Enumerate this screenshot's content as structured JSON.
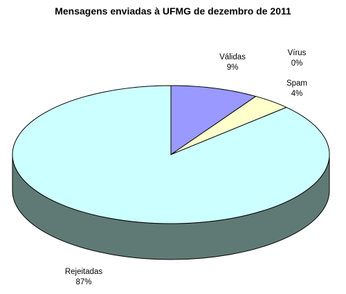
{
  "chart_data": {
    "type": "pie",
    "title": "Mensagens enviadas à UFMG de dezembro de 2011",
    "three_d": true,
    "slices": [
      {
        "label": "Válidas",
        "value": 9,
        "value_label": "9%",
        "color": "#9999ff"
      },
      {
        "label": "Spam",
        "value": 4,
        "value_label": "4%",
        "color": "#ffffcc"
      },
      {
        "label": "Vírus",
        "value": 0,
        "value_label": "0%",
        "color": "#993366"
      },
      {
        "label": "Rejeitadas",
        "value": 87,
        "value_label": "87%",
        "color": "#ccffff"
      }
    ],
    "side_color": "#5f7a74",
    "outline_color": "#000000"
  }
}
